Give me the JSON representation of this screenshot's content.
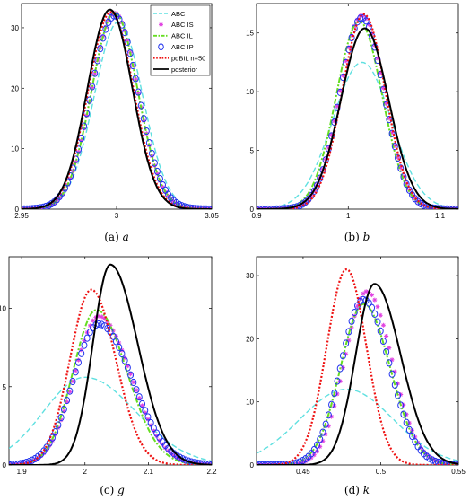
{
  "legend_items": [
    {
      "name": "ABC",
      "color": "#5fe0e0",
      "style": "dash"
    },
    {
      "name": "ABC IS",
      "color": "#e040e0",
      "style": "star"
    },
    {
      "name": "ABC IL",
      "color": "#66dd22",
      "style": "dashdot"
    },
    {
      "name": "ABC IP",
      "color": "#2233ee",
      "style": "circle"
    },
    {
      "name": "pdBIL n=50",
      "color": "#ee1111",
      "style": "dot"
    },
    {
      "name": "posterior",
      "color": "#000000",
      "style": "solid"
    }
  ],
  "chart_data": [
    {
      "type": "line",
      "caption_prefix": "(a)",
      "caption_var": "a",
      "xlim": [
        2.95,
        3.05
      ],
      "ylim": [
        0,
        34
      ],
      "xticks": [
        2.95,
        3,
        3.05
      ],
      "xtick_labels": [
        "2.95",
        "3",
        "3.05"
      ],
      "yticks": [
        0,
        10,
        20,
        30
      ],
      "ytick_labels": [
        "0",
        "10",
        "20",
        "30"
      ],
      "legend": "top-right",
      "series": [
        {
          "name": "ABC",
          "mu": 3.001,
          "sd": 0.0127,
          "peak": 31,
          "skew": 0
        },
        {
          "name": "ABC IS",
          "mu": 2.999,
          "sd": 0.0121,
          "peak": 32.5,
          "skew": 0
        },
        {
          "name": "ABC IL",
          "mu": 2.999,
          "sd": 0.0121,
          "peak": 32.5,
          "skew": 0
        },
        {
          "name": "ABC IP",
          "mu": 2.999,
          "sd": 0.0124,
          "peak": 32,
          "skew": 0
        },
        {
          "name": "pdBIL n=50",
          "mu": 2.997,
          "sd": 0.0119,
          "peak": 32.6,
          "skew": 0
        },
        {
          "name": "posterior",
          "mu": 2.9965,
          "sd": 0.0118,
          "peak": 33,
          "skew": 0
        }
      ]
    },
    {
      "type": "line",
      "caption_prefix": "(b)",
      "caption_var": "b",
      "xlim": [
        0.9,
        1.12
      ],
      "ylim": [
        0,
        17.5
      ],
      "xticks": [
        0.9,
        1,
        1.1
      ],
      "xtick_labels": [
        "0.9",
        "1",
        "1.1"
      ],
      "yticks": [
        0,
        5,
        10,
        15
      ],
      "ytick_labels": [
        "0",
        "5",
        "10",
        "15"
      ],
      "legend": "none",
      "series": [
        {
          "name": "ABC",
          "mu": 1.015,
          "sd": 0.032,
          "peak": 12.5,
          "skew": 0
        },
        {
          "name": "ABC IS",
          "mu": 1.015,
          "sd": 0.024,
          "peak": 16.5,
          "skew": 0
        },
        {
          "name": "ABC IL",
          "mu": 1.012,
          "sd": 0.025,
          "peak": 16,
          "skew": 0
        },
        {
          "name": "ABC IP",
          "mu": 1.015,
          "sd": 0.024,
          "peak": 16.3,
          "skew": 0
        },
        {
          "name": "pdBIL n=50",
          "mu": 1.017,
          "sd": 0.0235,
          "peak": 16.6,
          "skew": 0
        },
        {
          "name": "posterior",
          "mu": 1.018,
          "sd": 0.026,
          "peak": 15.4,
          "skew": 0
        }
      ]
    },
    {
      "type": "line",
      "caption_prefix": "(c)",
      "caption_var": "g",
      "xlim": [
        1.88,
        2.2
      ],
      "ylim": [
        0,
        13.3
      ],
      "xticks": [
        1.9,
        2,
        2.1,
        2.2
      ],
      "xtick_labels": [
        "1.9",
        "2",
        "2.1",
        "2.2"
      ],
      "yticks": [
        0,
        5,
        10
      ],
      "ytick_labels": [
        "0",
        "5",
        "10"
      ],
      "legend": "none",
      "series": [
        {
          "name": "ABC",
          "mu": 2.0,
          "sd": 0.07,
          "peak": 5.6,
          "skew": 0.15
        },
        {
          "name": "ABC IS",
          "mu": 2.022,
          "sd": 0.042,
          "peak": 9.5,
          "skew": 0.2
        },
        {
          "name": "ABC IL",
          "mu": 2.018,
          "sd": 0.04,
          "peak": 9.9,
          "skew": 0.2
        },
        {
          "name": "ABC IP",
          "mu": 2.022,
          "sd": 0.044,
          "peak": 9.0,
          "skew": 0.2
        },
        {
          "name": "pdBIL n=50",
          "mu": 2.01,
          "sd": 0.035,
          "peak": 11.2,
          "skew": 0.1
        },
        {
          "name": "posterior",
          "mu": 2.04,
          "sd": 0.032,
          "peak": 12.8,
          "skew": 0.35
        }
      ]
    },
    {
      "type": "line",
      "caption_prefix": "(d)",
      "caption_var": "k",
      "xlim": [
        0.42,
        0.55
      ],
      "ylim": [
        0,
        33
      ],
      "xticks": [
        0.45,
        0.5,
        0.55
      ],
      "xtick_labels": [
        "0.45",
        "0.5",
        "0.55"
      ],
      "yticks": [
        0,
        10,
        20,
        30
      ],
      "ytick_labels": [
        "0",
        "10",
        "20",
        "30"
      ],
      "legend": "none",
      "series": [
        {
          "name": "ABC",
          "mu": 0.478,
          "sd": 0.03,
          "peak": 12,
          "skew": 0
        },
        {
          "name": "ABC IS",
          "mu": 0.491,
          "sd": 0.0148,
          "peak": 27.5,
          "skew": 0.1
        },
        {
          "name": "ABC IL",
          "mu": 0.489,
          "sd": 0.0155,
          "peak": 25.5,
          "skew": 0.1
        },
        {
          "name": "ABC IP",
          "mu": 0.489,
          "sd": 0.0152,
          "peak": 26.2,
          "skew": 0.1
        },
        {
          "name": "pdBIL n=50",
          "mu": 0.478,
          "sd": 0.0128,
          "peak": 31,
          "skew": 0
        },
        {
          "name": "posterior",
          "mu": 0.496,
          "sd": 0.0135,
          "peak": 28.7,
          "skew": 0.25
        }
      ]
    }
  ]
}
